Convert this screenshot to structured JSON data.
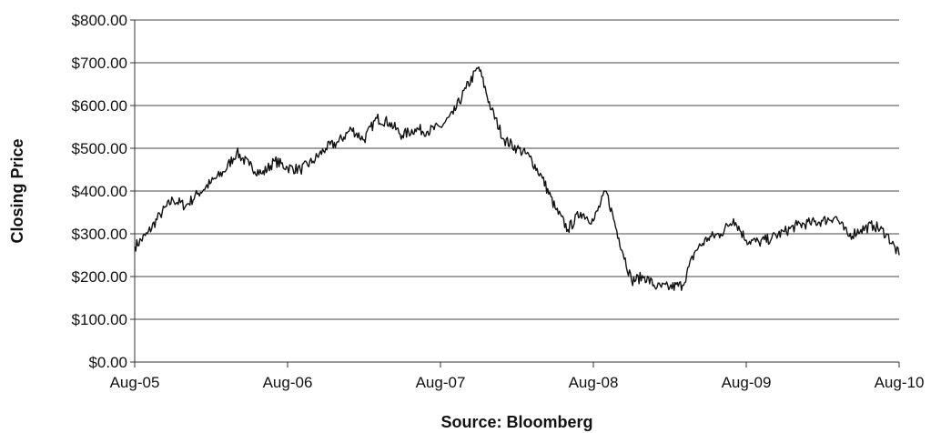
{
  "chart_data": {
    "type": "line",
    "ylabel": "Closing Price",
    "xlabel": "Source:  Bloomberg",
    "ylim": [
      0,
      800
    ],
    "y_ticks": [
      "$0.00",
      "$100.00",
      "$200.00",
      "$300.00",
      "$400.00",
      "$500.00",
      "$600.00",
      "$700.00",
      "$800.00"
    ],
    "x_ticks": [
      "Aug-05",
      "Aug-06",
      "Aug-07",
      "Aug-08",
      "Aug-09",
      "Aug-10"
    ],
    "grid": "horizontal",
    "line_color": "#111111",
    "series": [
      {
        "x": [
          "2005-08",
          "2005-09",
          "2005-10",
          "2005-11",
          "2005-12",
          "2006-01",
          "2006-02",
          "2006-03",
          "2006-04",
          "2006-05",
          "2006-06",
          "2006-07",
          "2006-08",
          "2006-09",
          "2006-10",
          "2006-11",
          "2006-12",
          "2007-01",
          "2007-02",
          "2007-03",
          "2007-04",
          "2007-05",
          "2007-06",
          "2007-07",
          "2007-08",
          "2007-09",
          "2007-10",
          "2007-11",
          "2007-12",
          "2008-01",
          "2008-02",
          "2008-03",
          "2008-04",
          "2008-05",
          "2008-06",
          "2008-07",
          "2008-08",
          "2008-09",
          "2008-10",
          "2008-11",
          "2008-12",
          "2009-01",
          "2009-02",
          "2009-03",
          "2009-04",
          "2009-05",
          "2009-06",
          "2009-07",
          "2009-08",
          "2009-09",
          "2009-10",
          "2009-11",
          "2009-12",
          "2010-01",
          "2010-02",
          "2010-03",
          "2010-04",
          "2010-05",
          "2010-06",
          "2010-07",
          "2010-08"
        ],
        "values": [
          270,
          300,
          345,
          380,
          365,
          395,
          420,
          445,
          490,
          460,
          440,
          470,
          455,
          450,
          470,
          500,
          515,
          545,
          520,
          570,
          560,
          530,
          545,
          540,
          550,
          580,
          640,
          690,
          590,
          520,
          500,
          480,
          430,
          360,
          310,
          350,
          330,
          400,
          290,
          190,
          200,
          175,
          175,
          180,
          260,
          290,
          300,
          335,
          285,
          280,
          290,
          305,
          320,
          325,
          330,
          340,
          295,
          310,
          320,
          300,
          250
        ]
      }
    ]
  }
}
